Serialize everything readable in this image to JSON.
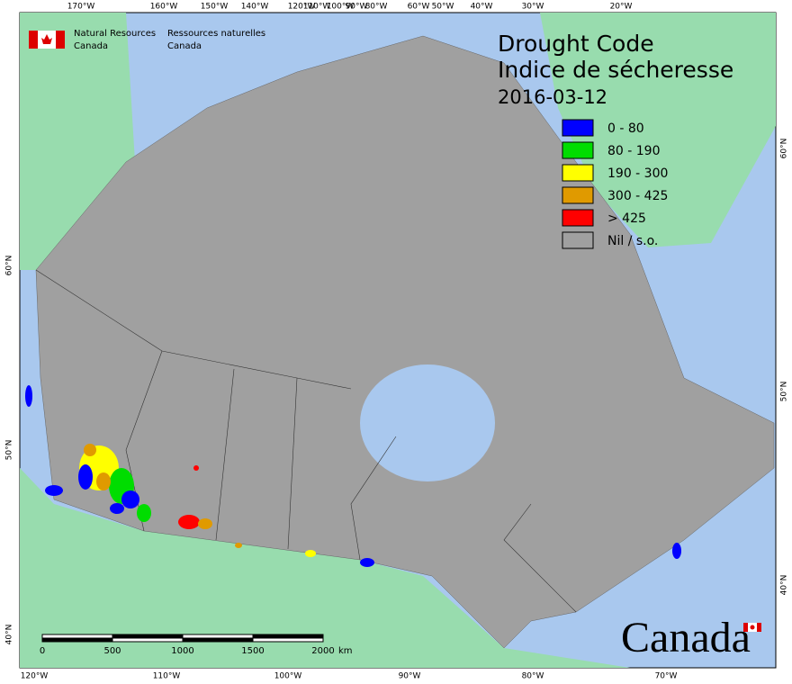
{
  "header": {
    "org_en": [
      "Natural Resources",
      "Canada"
    ],
    "org_fr": [
      "Ressources naturelles",
      "Canada"
    ]
  },
  "title": [
    "Drought Code",
    "Indice de sécheresse"
  ],
  "date": "2016-03-12",
  "legend": [
    {
      "label": "0 - 80",
      "color": "#0000ff"
    },
    {
      "label": "80 - 190",
      "color": "#00dd00"
    },
    {
      "label": "190 - 300",
      "color": "#ffff00"
    },
    {
      "label": "300 - 425",
      "color": "#e09a00"
    },
    {
      "label": "> 425",
      "color": "#ff0000"
    },
    {
      "label": "Nil / s.o.",
      "color": "#a0a0a0"
    }
  ],
  "top_labels": [
    "170°W",
    "160°W",
    "150°W",
    "140°W",
    "120°W",
    "110°W",
    "100°W",
    "90°W",
    "80°W",
    "60°W",
    "50°W",
    "40°W",
    "30°W",
    "20°W"
  ],
  "bottom_labels": [
    "120°W",
    "110°W",
    "100°W",
    "90°W",
    "80°W",
    "70°W"
  ],
  "left_labels": [
    "60°N",
    "50°N",
    "40°N"
  ],
  "right_labels": [
    "60°N",
    "50°N",
    "40°N"
  ],
  "scale": {
    "ticks": [
      "0",
      "500",
      "1000",
      "1500",
      "2000"
    ],
    "unit": "km"
  },
  "wordmark": "Canada"
}
